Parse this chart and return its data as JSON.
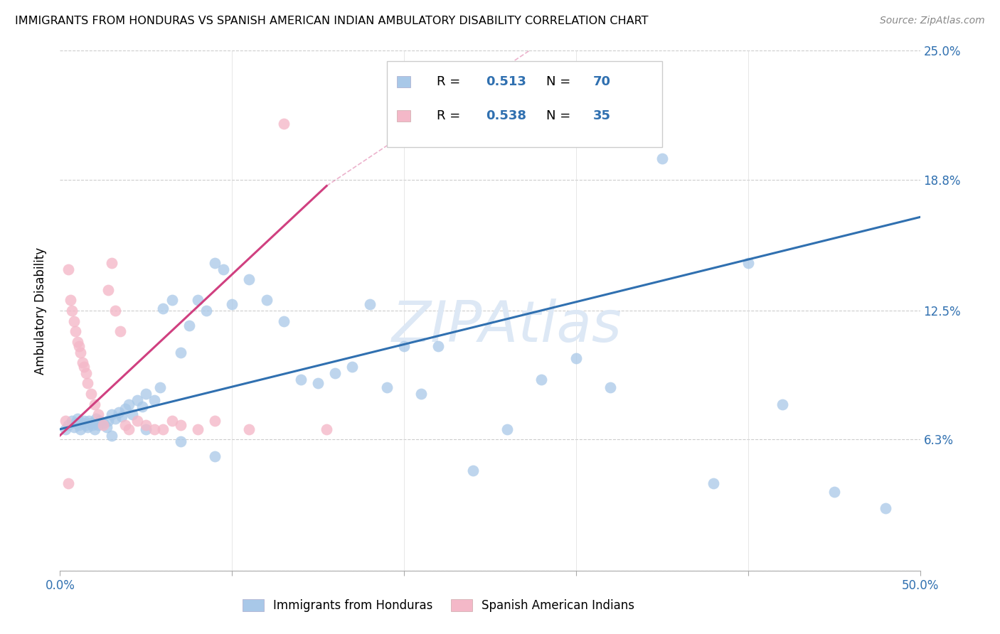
{
  "title": "IMMIGRANTS FROM HONDURAS VS SPANISH AMERICAN INDIAN AMBULATORY DISABILITY CORRELATION CHART",
  "source": "Source: ZipAtlas.com",
  "ylabel": "Ambulatory Disability",
  "xlim": [
    0.0,
    0.5
  ],
  "ylim": [
    0.0,
    0.25
  ],
  "xtick_vals": [
    0.0,
    0.1,
    0.2,
    0.3,
    0.4,
    0.5
  ],
  "xtick_labels": [
    "0.0%",
    "",
    "",
    "",
    "",
    "50.0%"
  ],
  "ytick_vals": [
    0.0,
    0.063,
    0.125,
    0.188,
    0.25
  ],
  "ytick_labels": [
    "",
    "6.3%",
    "12.5%",
    "18.8%",
    "25.0%"
  ],
  "color_blue": "#a8c8e8",
  "color_pink": "#f4b8c8",
  "color_trendline_blue": "#3070b0",
  "color_trendline_pink": "#d04080",
  "watermark": "ZIPAtlas",
  "watermark_color": "#dde8f5",
  "legend_r1": "0.513",
  "legend_n1": "70",
  "legend_r2": "0.538",
  "legend_n2": "35",
  "legend_color_rn": "#3070b0",
  "blue_x": [
    0.003,
    0.005,
    0.007,
    0.008,
    0.009,
    0.01,
    0.011,
    0.012,
    0.013,
    0.014,
    0.015,
    0.016,
    0.017,
    0.018,
    0.019,
    0.02,
    0.021,
    0.022,
    0.023,
    0.025,
    0.027,
    0.028,
    0.03,
    0.032,
    0.034,
    0.036,
    0.038,
    0.04,
    0.042,
    0.045,
    0.048,
    0.05,
    0.055,
    0.058,
    0.06,
    0.065,
    0.07,
    0.075,
    0.08,
    0.085,
    0.09,
    0.095,
    0.1,
    0.11,
    0.12,
    0.13,
    0.14,
    0.15,
    0.16,
    0.17,
    0.18,
    0.19,
    0.2,
    0.21,
    0.22,
    0.24,
    0.26,
    0.28,
    0.3,
    0.32,
    0.35,
    0.38,
    0.4,
    0.42,
    0.45,
    0.48,
    0.03,
    0.05,
    0.07,
    0.09
  ],
  "blue_y": [
    0.068,
    0.07,
    0.072,
    0.069,
    0.071,
    0.073,
    0.07,
    0.068,
    0.071,
    0.072,
    0.07,
    0.069,
    0.072,
    0.071,
    0.07,
    0.068,
    0.073,
    0.07,
    0.072,
    0.071,
    0.069,
    0.072,
    0.075,
    0.073,
    0.076,
    0.074,
    0.078,
    0.08,
    0.075,
    0.082,
    0.079,
    0.085,
    0.082,
    0.088,
    0.126,
    0.13,
    0.105,
    0.118,
    0.13,
    0.125,
    0.148,
    0.145,
    0.128,
    0.14,
    0.13,
    0.12,
    0.092,
    0.09,
    0.095,
    0.098,
    0.128,
    0.088,
    0.108,
    0.085,
    0.108,
    0.048,
    0.068,
    0.092,
    0.102,
    0.088,
    0.198,
    0.042,
    0.148,
    0.08,
    0.038,
    0.03,
    0.065,
    0.068,
    0.062,
    0.055
  ],
  "pink_x": [
    0.003,
    0.005,
    0.006,
    0.007,
    0.008,
    0.009,
    0.01,
    0.011,
    0.012,
    0.013,
    0.014,
    0.015,
    0.016,
    0.018,
    0.02,
    0.022,
    0.025,
    0.028,
    0.03,
    0.032,
    0.035,
    0.038,
    0.04,
    0.045,
    0.05,
    0.055,
    0.06,
    0.065,
    0.07,
    0.08,
    0.09,
    0.11,
    0.13,
    0.155,
    0.005
  ],
  "pink_y": [
    0.072,
    0.145,
    0.13,
    0.125,
    0.12,
    0.115,
    0.11,
    0.108,
    0.105,
    0.1,
    0.098,
    0.095,
    0.09,
    0.085,
    0.08,
    0.075,
    0.07,
    0.135,
    0.148,
    0.125,
    0.115,
    0.07,
    0.068,
    0.072,
    0.07,
    0.068,
    0.068,
    0.072,
    0.07,
    0.068,
    0.072,
    0.068,
    0.215,
    0.068,
    0.042
  ],
  "blue_trendline_x": [
    0.0,
    0.5
  ],
  "blue_trendline_y": [
    0.068,
    0.17
  ],
  "pink_trendline_x": [
    0.0,
    0.155
  ],
  "pink_trendline_y": [
    0.065,
    0.185
  ]
}
